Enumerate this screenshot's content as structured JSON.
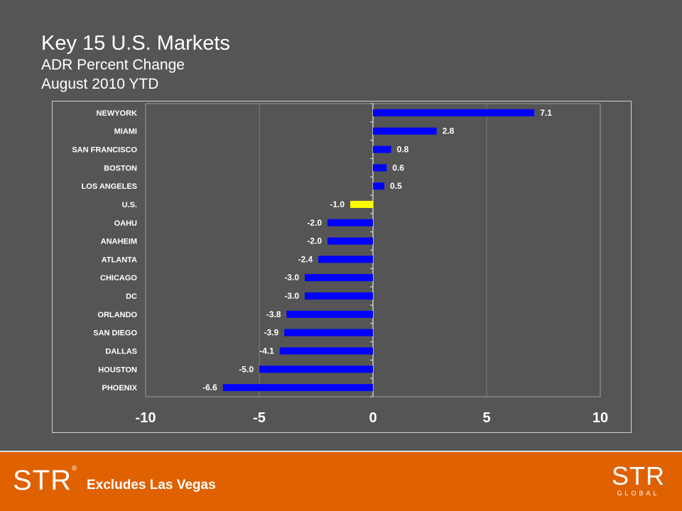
{
  "title": "Key 15 U.S. Markets",
  "subtitle": "ADR Percent Change",
  "subtitle2": "August 2010 YTD",
  "footnote": "Excludes Las Vegas",
  "logo_left": "STR",
  "logo_right": "STR",
  "logo_right_sub": "GLOBAL",
  "chart_data": {
    "type": "bar",
    "orientation": "horizontal",
    "categories": [
      "NEWYORK",
      "MIAMI",
      "SAN FRANCISCO",
      "BOSTON",
      "LOS ANGELES",
      "U.S.",
      "OAHU",
      "ANAHEIM",
      "ATLANTA",
      "CHICAGO",
      "DC",
      "ORLANDO",
      "SAN DIEGO",
      "DALLAS",
      "HOUSTON",
      "PHOENIX"
    ],
    "values": [
      7.1,
      2.8,
      0.8,
      0.6,
      0.5,
      -1.0,
      -2.0,
      -2.0,
      -2.4,
      -3.0,
      -3.0,
      -3.8,
      -3.9,
      -4.1,
      -5.0,
      -6.6
    ],
    "data_labels": [
      "7.1",
      "2.8",
      "0.8",
      "0.6",
      "0.5",
      "-1.0",
      "-2.0",
      "-2.0",
      "-2.4",
      "-3.0",
      "-3.0",
      "-3.8",
      "-3.9",
      "-4.1",
      "-5.0",
      "-6.6"
    ],
    "highlight_category": "U.S.",
    "bar_color": "#0000ff",
    "highlight_color": "#ffff00",
    "xlim": [
      -10,
      10
    ],
    "xticks": [
      -10,
      -5,
      0,
      5,
      10
    ],
    "xtick_labels": [
      "-10",
      "-5",
      "0",
      "5",
      "10"
    ],
    "grid": "vertical",
    "xlabel": "",
    "ylabel": ""
  }
}
